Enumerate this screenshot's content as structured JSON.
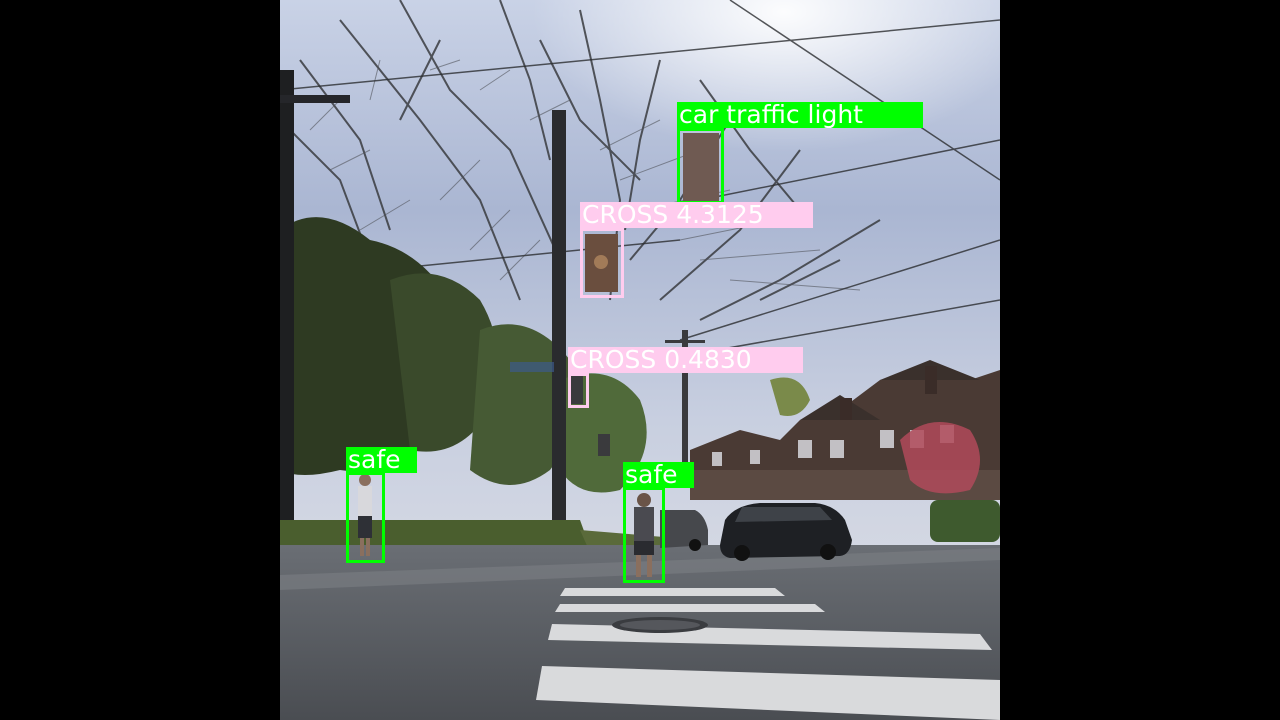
{
  "detections": [
    {
      "label": "car traffic light",
      "color": "#00ff00"
    },
    {
      "label": "CROSS 4.3125",
      "color": "#ffccee"
    },
    {
      "label": "CROSS 0.4830",
      "color": "#ffccee"
    },
    {
      "label": "safe",
      "color": "#00ff00"
    },
    {
      "label": "safe",
      "color": "#00ff00"
    }
  ]
}
